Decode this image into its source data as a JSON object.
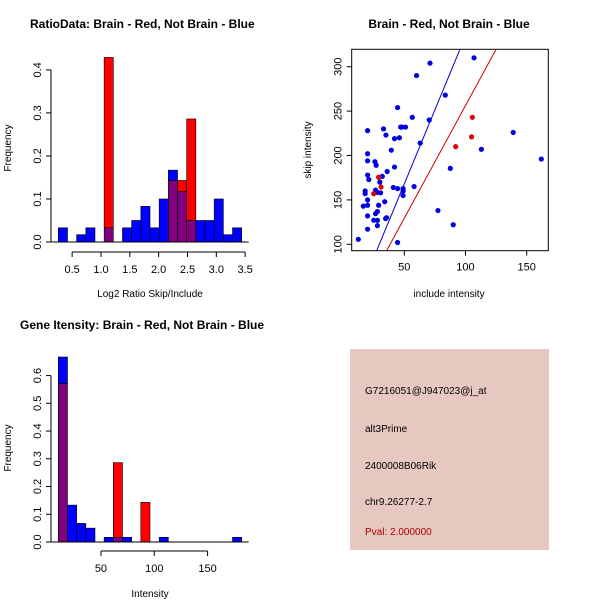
{
  "colors": {
    "blue": "#0000ff",
    "red": "#ff0000",
    "overlap": "#800080",
    "blue_line": "#0000cc",
    "red_line": "#cc0000",
    "info_bg": "#e6c8c0",
    "pval": "#aa0000"
  },
  "chart_data": [
    {
      "type": "bar",
      "title": "RatioData: Brain - Red, Not Brain - Blue",
      "xlabel": "Log2 Ratio Skip/Include",
      "ylabel": "Frequency",
      "xlim": [
        0.26,
        3.44
      ],
      "ylim": [
        0,
        0.43
      ],
      "xticks": [
        "0.5",
        "1.0",
        "1.5",
        "2.0",
        "2.5",
        "3.0",
        "3.5"
      ],
      "xtick_values": [
        0.5,
        1.0,
        1.5,
        2.0,
        2.5,
        3.0,
        3.5
      ],
      "yticks": [
        "0.0",
        "0.1",
        "0.2",
        "0.3",
        "0.4"
      ],
      "ytick_values": [
        0,
        0.1,
        0.2,
        0.3,
        0.4
      ],
      "bin_start": 0.26,
      "bin_width": 0.159,
      "series": [
        {
          "name": "Not Brain",
          "color": "blue",
          "values": [
            0.033,
            0,
            0.017,
            0.033,
            0,
            0.033,
            0,
            0.033,
            0.05,
            0.083,
            0.033,
            0.1,
            0.167,
            0.117,
            0.05,
            0.05,
            0.05,
            0.1,
            0.017,
            0.033
          ]
        },
        {
          "name": "Brain",
          "color": "red",
          "values": [
            0,
            0,
            0,
            0,
            0,
            0.429,
            0,
            0,
            0,
            0,
            0,
            0,
            0.143,
            0.143,
            0.286,
            0,
            0,
            0,
            0,
            0
          ]
        }
      ]
    },
    {
      "type": "scatter",
      "title": "Brain - Red, Not Brain - Blue",
      "xlabel": "include intensity",
      "ylabel": "skip intensity",
      "xlim": [
        7,
        167.7
      ],
      "ylim": [
        92.8,
        319.6
      ],
      "xticks": [
        "50",
        "100",
        "150"
      ],
      "xtick_values": [
        50,
        100,
        150
      ],
      "yticks": [
        "100",
        "150",
        "200",
        "250",
        "300"
      ],
      "ytick_values": [
        100,
        150,
        200,
        250,
        300
      ],
      "series": [
        {
          "name": "Not Brain",
          "color": "blue",
          "points": [
            [
              12.4,
              105.6
            ],
            [
              107,
              310
            ],
            [
              71,
              304
            ],
            [
              60,
              290
            ],
            [
              83.5,
              268
            ],
            [
              44.5,
              254
            ],
            [
              70.4,
              240
            ],
            [
              56.5,
              243
            ],
            [
              20,
              228
            ],
            [
              33,
              230
            ],
            [
              35,
              223
            ],
            [
              42,
              219
            ],
            [
              46,
              220
            ],
            [
              47,
              232
            ],
            [
              48,
              232
            ],
            [
              51,
              232
            ],
            [
              63,
              214
            ],
            [
              139,
              226
            ],
            [
              113,
              207
            ],
            [
              39.4,
              206
            ],
            [
              20,
              202
            ],
            [
              26,
              193
            ],
            [
              20,
              194
            ],
            [
              27,
              189
            ],
            [
              162,
              196
            ],
            [
              87.6,
              185.5
            ],
            [
              42,
              187
            ],
            [
              36,
              182
            ],
            [
              20,
              178
            ],
            [
              21,
              173
            ],
            [
              32,
              176.5
            ],
            [
              30,
              170
            ],
            [
              41,
              164
            ],
            [
              44.5,
              162.7
            ],
            [
              49,
              162.7
            ],
            [
              49,
              160
            ],
            [
              49,
              155
            ],
            [
              58,
              165
            ],
            [
              18,
              160
            ],
            [
              18,
              157
            ],
            [
              26.5,
              161
            ],
            [
              28,
              158.5
            ],
            [
              30.6,
              158
            ],
            [
              34,
              148
            ],
            [
              16.5,
              143
            ],
            [
              20,
              144
            ],
            [
              29,
              144
            ],
            [
              20,
              150
            ],
            [
              28,
              137
            ],
            [
              26.5,
              134.5
            ],
            [
              20,
              132
            ],
            [
              25,
              127
            ],
            [
              28,
              127
            ],
            [
              34.7,
              129
            ],
            [
              35.5,
              130
            ],
            [
              28,
              121
            ],
            [
              20,
              117
            ],
            [
              77.5,
              138
            ],
            [
              90,
              122
            ],
            [
              44.5,
              102
            ]
          ]
        },
        {
          "name": "Brain",
          "color": "red",
          "points": [
            [
              105.6,
              243
            ],
            [
              105,
              221
            ],
            [
              92,
              210
            ],
            [
              29,
              175.5
            ],
            [
              31,
              164.5
            ],
            [
              25,
              157
            ]
          ]
        }
      ],
      "lines": [
        {
          "color": "blue_line",
          "intercept": 1.6,
          "slope": 3.33
        },
        {
          "color": "red_line",
          "intercept": 2.7,
          "slope": 2.535
        }
      ]
    },
    {
      "type": "bar",
      "title": "Gene Itensity: Brain - Red, Not Brain - Blue",
      "xlabel": "Intensity",
      "ylabel": "Frequency",
      "xlim": [
        10,
        182
      ],
      "ylim": [
        0,
        0.667
      ],
      "xticks": [
        "50",
        "100",
        "150"
      ],
      "xtick_values": [
        50,
        100,
        150
      ],
      "yticks": [
        "0.0",
        "0.1",
        "0.2",
        "0.3",
        "0.4",
        "0.5",
        "0.6"
      ],
      "ytick_values": [
        0,
        0.1,
        0.2,
        0.3,
        0.4,
        0.5,
        0.6
      ],
      "bin_start": 10,
      "bin_width": 8.6,
      "series": [
        {
          "name": "Not Brain",
          "color": "blue",
          "values": [
            0.667,
            0.133,
            0.067,
            0.05,
            0,
            0.017,
            0.017,
            0.017,
            0,
            0,
            0,
            0.017,
            0,
            0,
            0,
            0,
            0,
            0,
            0,
            0.017
          ]
        },
        {
          "name": "Brain",
          "color": "red",
          "values": [
            0.571,
            0,
            0,
            0,
            0,
            0,
            0.286,
            0,
            0,
            0.143,
            0,
            0,
            0,
            0,
            0,
            0,
            0,
            0,
            0,
            0
          ]
        }
      ]
    }
  ],
  "info": {
    "probe": "G7216051@J947023@j_at",
    "event_type": "alt3Prime",
    "gene": "2400008B06Rik",
    "location": "chr9.26277-2.7",
    "pval": "Pval: 2.000000"
  }
}
